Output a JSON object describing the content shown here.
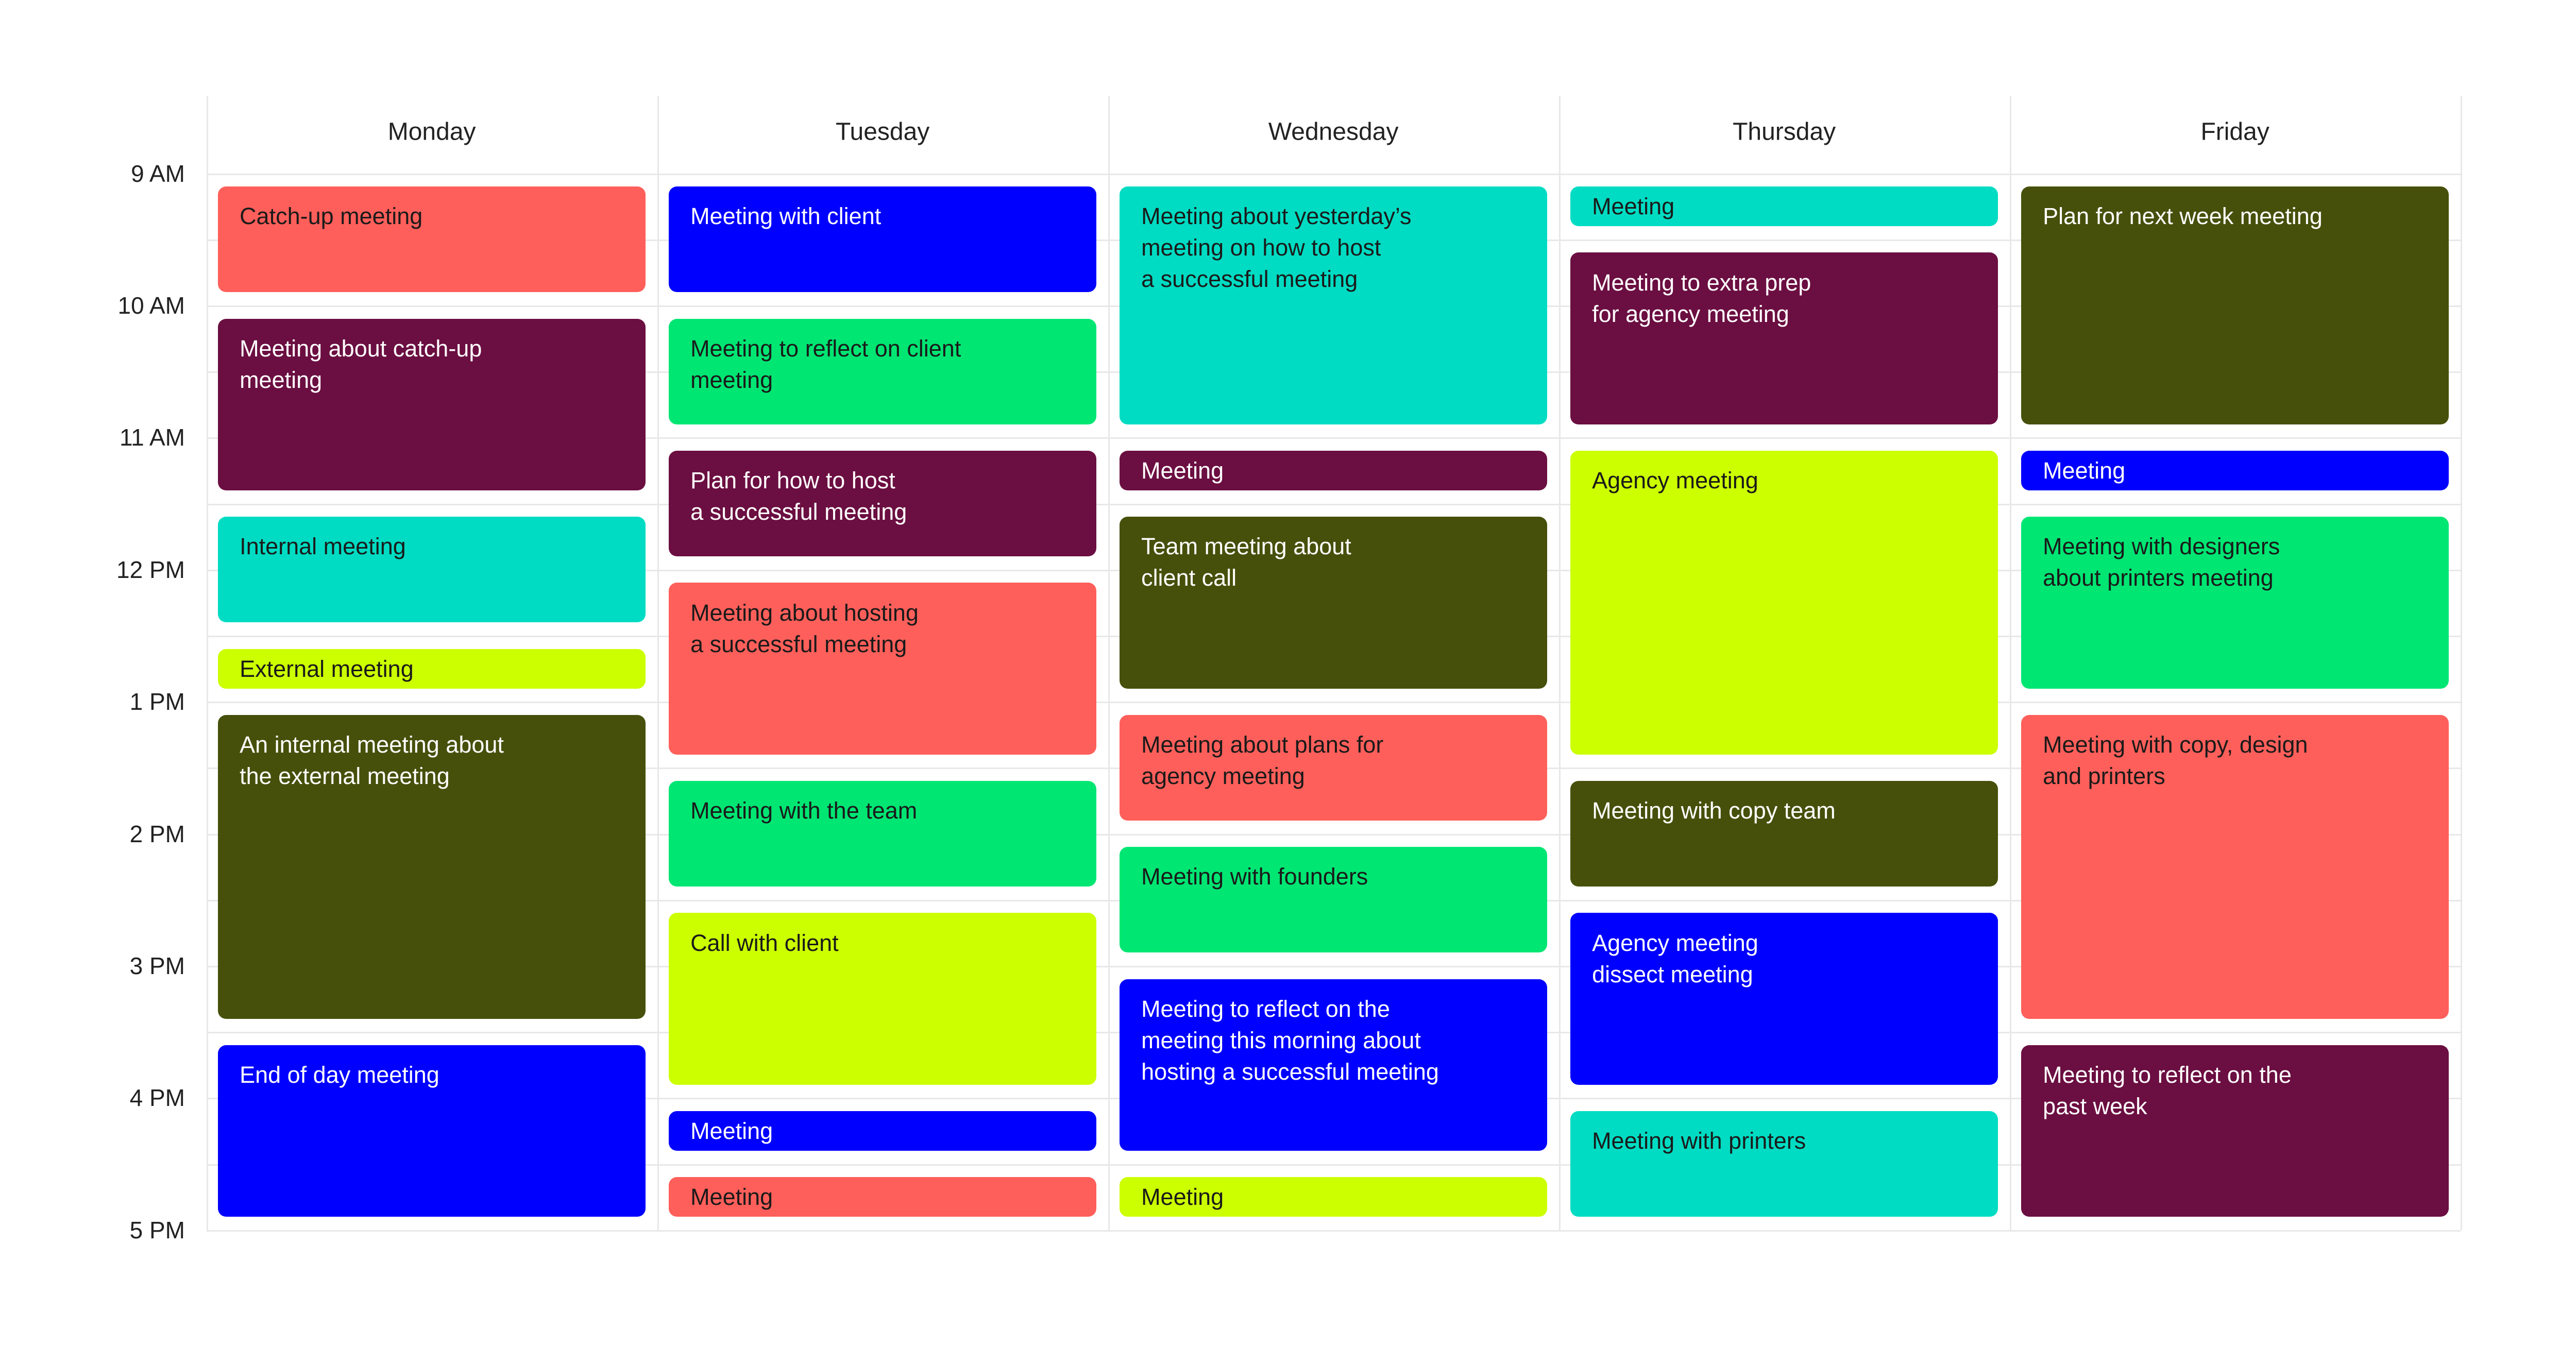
{
  "times": [
    {
      "label": "9 AM",
      "hour": 9
    },
    {
      "label": "10 AM",
      "hour": 10
    },
    {
      "label": "11 AM",
      "hour": 11
    },
    {
      "label": "12 PM",
      "hour": 12
    },
    {
      "label": "1 PM",
      "hour": 13
    },
    {
      "label": "2 PM",
      "hour": 14
    },
    {
      "label": "3 PM",
      "hour": 15
    },
    {
      "label": "4 PM",
      "hour": 16
    },
    {
      "label": "5 PM",
      "hour": 17
    }
  ],
  "days": [
    {
      "name": "Monday",
      "events": [
        {
          "lines": [
            "Catch-up meeting"
          ],
          "start": 9,
          "end": 10,
          "color": "#ff5f5a"
        },
        {
          "lines": [
            "Meeting about catch-up",
            "meeting"
          ],
          "start": 10,
          "end": 11.5,
          "color": "#6b0e41"
        },
        {
          "lines": [
            "Internal meeting"
          ],
          "start": 11.5,
          "end": 12.5,
          "color": "#00dcc3"
        },
        {
          "lines": [
            "External meeting"
          ],
          "start": 12.5,
          "end": 13,
          "color": "#ccff00"
        },
        {
          "lines": [
            "An internal meeting about",
            "the external meeting"
          ],
          "start": 13,
          "end": 15.5,
          "color": "#46500b"
        },
        {
          "lines": [
            "End of day meeting"
          ],
          "start": 15.5,
          "end": 17,
          "color": "#0000ff"
        }
      ]
    },
    {
      "name": "Tuesday",
      "events": [
        {
          "lines": [
            "Meeting with client"
          ],
          "start": 9,
          "end": 10,
          "color": "#0000ff"
        },
        {
          "lines": [
            "Meeting to reflect on client",
            "meeting"
          ],
          "start": 10,
          "end": 11,
          "color": "#00e673"
        },
        {
          "lines": [
            "Plan for how to host",
            "a successful meeting"
          ],
          "start": 11,
          "end": 12,
          "color": "#6b0e41"
        },
        {
          "lines": [
            "Meeting about hosting",
            "a successful meeting"
          ],
          "start": 12,
          "end": 13.5,
          "color": "#ff5f5a"
        },
        {
          "lines": [
            "Meeting with the team"
          ],
          "start": 13.5,
          "end": 14.5,
          "color": "#00e673"
        },
        {
          "lines": [
            "Call with client"
          ],
          "start": 14.5,
          "end": 16,
          "color": "#ccff00"
        },
        {
          "lines": [
            "Meeting"
          ],
          "start": 16,
          "end": 16.5,
          "color": "#0000ff"
        },
        {
          "lines": [
            "Meeting"
          ],
          "start": 16.5,
          "end": 17,
          "color": "#ff5f5a"
        }
      ]
    },
    {
      "name": "Wednesday",
      "events": [
        {
          "lines": [
            "Meeting about yesterday’s",
            "meeting on how to host",
            "a successful meeting"
          ],
          "start": 9,
          "end": 11,
          "color": "#00dcc3"
        },
        {
          "lines": [
            "Meeting"
          ],
          "start": 11,
          "end": 11.5,
          "color": "#6b0e41"
        },
        {
          "lines": [
            "Team meeting about",
            "client call"
          ],
          "start": 11.5,
          "end": 13,
          "color": "#46500b"
        },
        {
          "lines": [
            "Meeting about plans for",
            "agency meeting"
          ],
          "start": 13,
          "end": 14,
          "color": "#ff5f5a"
        },
        {
          "lines": [
            "Meeting with founders"
          ],
          "start": 14,
          "end": 15,
          "color": "#00e673"
        },
        {
          "lines": [
            "Meeting to reflect on the",
            "meeting this morning about",
            "hosting a successful  meeting"
          ],
          "start": 15,
          "end": 16.5,
          "color": "#0000ff"
        },
        {
          "lines": [
            "Meeting"
          ],
          "start": 16.5,
          "end": 17,
          "color": "#ccff00"
        }
      ]
    },
    {
      "name": "Thursday",
      "events": [
        {
          "lines": [
            "Meeting"
          ],
          "start": 9,
          "end": 9.5,
          "color": "#00dcc3"
        },
        {
          "lines": [
            "Meeting to extra prep",
            "for agency meeting"
          ],
          "start": 9.5,
          "end": 11,
          "color": "#6b0e41"
        },
        {
          "lines": [
            "Agency meeting"
          ],
          "start": 11,
          "end": 13.5,
          "color": "#ccff00"
        },
        {
          "lines": [
            "Meeting with copy team"
          ],
          "start": 13.5,
          "end": 14.5,
          "color": "#46500b"
        },
        {
          "lines": [
            "Agency meeting",
            "dissect meeting"
          ],
          "start": 14.5,
          "end": 16,
          "color": "#0000ff"
        },
        {
          "lines": [
            "Meeting with printers"
          ],
          "start": 16,
          "end": 17,
          "color": "#00dcc3"
        }
      ]
    },
    {
      "name": "Friday",
      "events": [
        {
          "lines": [
            "Plan for next week meeting"
          ],
          "start": 9,
          "end": 11,
          "color": "#46500b"
        },
        {
          "lines": [
            "Meeting"
          ],
          "start": 11,
          "end": 11.5,
          "color": "#0000ff"
        },
        {
          "lines": [
            "Meeting with designers",
            "about printers meeting"
          ],
          "start": 11.5,
          "end": 13,
          "color": "#00e673"
        },
        {
          "lines": [
            "Meeting with copy, design",
            "and printers"
          ],
          "start": 13,
          "end": 15.5,
          "color": "#ff5f5a"
        },
        {
          "lines": [
            "Meeting to reflect on the",
            "past week"
          ],
          "start": 15.5,
          "end": 17,
          "color": "#6b0e41"
        }
      ]
    }
  ]
}
